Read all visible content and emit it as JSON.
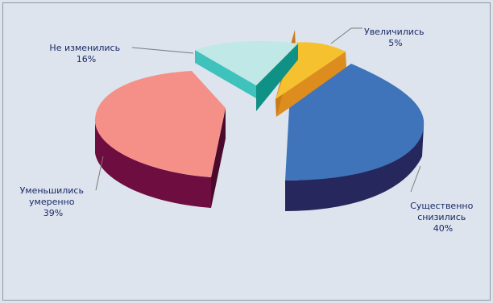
{
  "chart_data": {
    "type": "pie",
    "title": "",
    "legend": "none",
    "slices": [
      {
        "name": "Увеличились",
        "label_lines": [
          "Увеличились"
        ],
        "value": 5,
        "value_label": "5%",
        "top_color": "#f6c12e",
        "side_color": "#dd8d1d"
      },
      {
        "name": "Существенно снизились",
        "label_lines": [
          "Существенно",
          "снизились"
        ],
        "value": 40,
        "value_label": "40%",
        "top_color": "#3f74bb",
        "side_color": "#26275c"
      },
      {
        "name": "Уменьшились умеренно",
        "label_lines": [
          "Уменьшились",
          "умеренно"
        ],
        "value": 39,
        "value_label": "39%",
        "top_color": "#f59089",
        "side_color": "#6e0d40"
      },
      {
        "name": "Не изменились",
        "label_lines": [
          "Не изменились"
        ],
        "value": 16,
        "value_label": "16%",
        "top_color": "#bfe8e6",
        "side_color": "#3fc2bc"
      }
    ]
  }
}
